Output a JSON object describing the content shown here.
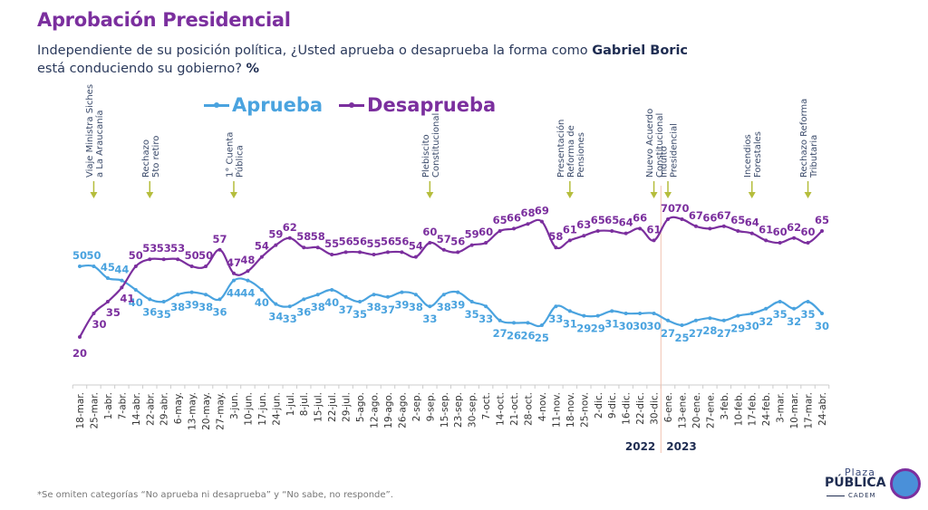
{
  "header": {
    "title": "Aprobación Presidencial",
    "subtitle_pre": "Independiente de su posición política, ¿Usted aprueba o desaprueba la forma como ",
    "subtitle_bold": "Gabriel Boric",
    "subtitle_post": " está conducid­iendo su gobierno? ",
    "subtitle_pct": "%"
  },
  "footnote": "*Se omiten categorías “No aprueba ni desaprueba” y “No sabe, no responde”.",
  "logo": {
    "line1": "Plaza",
    "line2": "PÚBLICA",
    "line3": "CADEM"
  },
  "colors": {
    "aprueba": "#4aa3df",
    "desaprueba": "#7b2f9e",
    "arrow": "#b5bd3c",
    "divider": "#f2c2b0",
    "axis": "#cccccc",
    "tick_text": "#333333",
    "year_text": "#1f2d52"
  },
  "chart_data": {
    "type": "line",
    "title": "Aprobación Presidencial",
    "xlabel": "",
    "ylabel": "%",
    "ylim": [
      0,
      75
    ],
    "grid": false,
    "legend_position": "top-center",
    "categories": [
      "18-mar.",
      "25-mar.",
      "1-abr.",
      "7-abr.",
      "14-abr.",
      "22-abr.",
      "29-abr.",
      "6-may.",
      "13-may.",
      "20-may.",
      "27-may.",
      "3-jun.",
      "10-jun.",
      "17-jun.",
      "24-jun.",
      "1-jul.",
      "8-jul.",
      "15-jul.",
      "22-jul.",
      "29-jul.",
      "5-ago.",
      "12-ago.",
      "19-ago.",
      "26-ago.",
      "2-sep.",
      "9-sep.",
      "15-sep.",
      "23-sep.",
      "30-sep.",
      "7-oct.",
      "14-oct.",
      "21-oct.",
      "28-oct.",
      "4-nov.",
      "11-nov.",
      "18-nov.",
      "25-nov.",
      "2-dic.",
      "9-dic.",
      "16-dic.",
      "22-dic.",
      "30-dic.",
      "6-ene.",
      "13-ene.",
      "20-ene.",
      "27-ene.",
      "3-feb.",
      "10-feb.",
      "17-feb.",
      "24-feb.",
      "3-mar.",
      "10-mar.",
      "17-mar.",
      "24-abr."
    ],
    "series": [
      {
        "name": "Aprueba",
        "key": "aprueba",
        "values": [
          50,
          50,
          45,
          44,
          40,
          36,
          35,
          38,
          39,
          38,
          36,
          44,
          44,
          40,
          34,
          33,
          36,
          38,
          40,
          37,
          35,
          38,
          37,
          39,
          38,
          33,
          38,
          39,
          35,
          33,
          27,
          26,
          26,
          25,
          33,
          31,
          29,
          29,
          31,
          30,
          30,
          30,
          27,
          25,
          27,
          28,
          27,
          29,
          30,
          32,
          35,
          32,
          35,
          30
        ]
      },
      {
        "name": "Desaprueba",
        "key": "desaprueba",
        "values": [
          20,
          30,
          35,
          41,
          50,
          53,
          53,
          53,
          50,
          50,
          57,
          47,
          48,
          54,
          59,
          62,
          58,
          58,
          55,
          56,
          56,
          55,
          56,
          56,
          54,
          60,
          57,
          56,
          59,
          60,
          65,
          66,
          68,
          69,
          58,
          61,
          63,
          65,
          65,
          64,
          66,
          61,
          70,
          70,
          67,
          66,
          67,
          65,
          64,
          61,
          60,
          62,
          60,
          65
        ]
      }
    ],
    "year_labels": [
      {
        "label": "2022",
        "end_index": 41
      },
      {
        "label": "2023",
        "start_index": 42
      }
    ],
    "year_divider_between": [
      41,
      42
    ],
    "annotations": [
      {
        "index": 1,
        "lines": [
          "Viaje Ministra Siches",
          "a La Araucanía"
        ]
      },
      {
        "index": 5,
        "lines": [
          "Rechazo",
          "5to retiro"
        ]
      },
      {
        "index": 11,
        "lines": [
          "1° Cuenta",
          "Pública"
        ]
      },
      {
        "index": 25,
        "lines": [
          "Plebiscito",
          "Constitucional"
        ]
      },
      {
        "index": 35,
        "lines": [
          "Presentación",
          "Reforma de",
          "Pensiones"
        ]
      },
      {
        "index": 41,
        "lines": [
          "Nuevo Acuerdo",
          "Constitucional"
        ]
      },
      {
        "index": 42,
        "lines": [
          "Indulto",
          "Presidencial"
        ]
      },
      {
        "index": 48,
        "lines": [
          "Incendios",
          "Forestales"
        ]
      },
      {
        "index": 52,
        "lines": [
          "Rechazo Reforma",
          "Tributaria"
        ]
      }
    ]
  }
}
